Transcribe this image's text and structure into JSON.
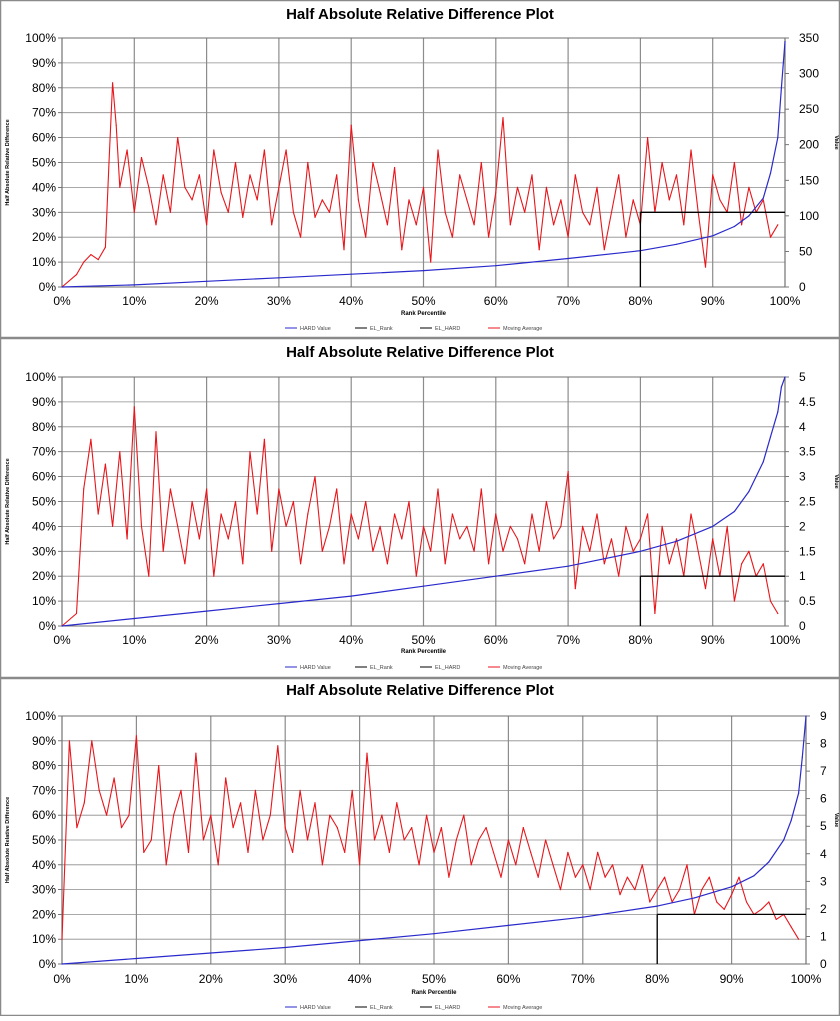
{
  "chart_data": [
    {
      "type": "line",
      "title": "Half Absolute Relative Difference Plot",
      "xlabel": "Rank Percentile",
      "ylabel": "Half Absolute Relative Difference",
      "y2label": "Value",
      "x_ticks": [
        "0%",
        "10%",
        "20%",
        "30%",
        "40%",
        "50%",
        "60%",
        "70%",
        "80%",
        "90%",
        "100%"
      ],
      "y_ticks": [
        "0%",
        "10%",
        "20%",
        "30%",
        "40%",
        "50%",
        "60%",
        "70%",
        "80%",
        "90%",
        "100%"
      ],
      "y2_ticks": [
        "0",
        "50",
        "100",
        "150",
        "200",
        "250",
        "300",
        "350"
      ],
      "xlim": [
        0,
        100
      ],
      "ylim": [
        0,
        100
      ],
      "y2lim": [
        0,
        350
      ],
      "legend": [
        "HARD Value",
        "EL_Rank",
        "EL_HARD",
        "Moving Average"
      ],
      "legend_position": "bottom",
      "el_rank": 80,
      "el_hard": 30,
      "series": [
        {
          "name": "Moving Average",
          "color": "#e8161b",
          "x": [
            0,
            2,
            3,
            4,
            5,
            6,
            6.5,
            7,
            7.5,
            8,
            9,
            10,
            11,
            12,
            13,
            14,
            15,
            16,
            17,
            18,
            19,
            20,
            21,
            22,
            23,
            24,
            25,
            26,
            27,
            28,
            29,
            30,
            31,
            32,
            33,
            34,
            35,
            36,
            37,
            38,
            39,
            40,
            41,
            42,
            43,
            44,
            45,
            46,
            47,
            48,
            49,
            50,
            51,
            52,
            53,
            54,
            55,
            56,
            57,
            58,
            59,
            60,
            61,
            62,
            63,
            64,
            65,
            66,
            67,
            68,
            69,
            70,
            71,
            72,
            73,
            74,
            75,
            76,
            77,
            78,
            79,
            80,
            81,
            82,
            83,
            84,
            85,
            86,
            87,
            88,
            89,
            90,
            91,
            92,
            93,
            94,
            95,
            96,
            97,
            98,
            99
          ],
          "y": [
            0,
            5,
            10,
            13,
            11,
            16,
            50,
            82,
            65,
            40,
            55,
            30,
            52,
            40,
            25,
            45,
            30,
            60,
            40,
            35,
            45,
            25,
            55,
            38,
            30,
            50,
            28,
            45,
            35,
            55,
            25,
            40,
            55,
            30,
            20,
            50,
            28,
            35,
            30,
            45,
            15,
            65,
            35,
            20,
            50,
            38,
            25,
            48,
            15,
            35,
            25,
            40,
            10,
            55,
            30,
            20,
            45,
            35,
            25,
            50,
            20,
            38,
            68,
            25,
            40,
            30,
            45,
            15,
            40,
            25,
            35,
            20,
            45,
            30,
            25,
            40,
            15,
            30,
            45,
            20,
            35,
            25,
            60,
            30,
            50,
            35,
            45,
            25,
            55,
            30,
            8,
            45,
            35,
            30,
            50,
            25,
            40,
            30,
            35,
            20,
            25
          ]
        },
        {
          "name": "HARD Value",
          "color": "#2a2acc",
          "x": [
            0,
            10,
            20,
            30,
            40,
            50,
            60,
            70,
            80,
            85,
            90,
            93,
            95,
            97,
            98,
            99,
            99.5,
            100
          ],
          "y": [
            0,
            3,
            8,
            13,
            18,
            23,
            30,
            40,
            51,
            60,
            72,
            85,
            100,
            125,
            160,
            210,
            280,
            345
          ]
        }
      ]
    },
    {
      "type": "line",
      "title": "Half Absolute Relative Difference Plot",
      "xlabel": "Rank Percentile",
      "ylabel": "Half Absolute Relative Difference",
      "y2label": "Value",
      "x_ticks": [
        "0%",
        "10%",
        "20%",
        "30%",
        "40%",
        "50%",
        "60%",
        "70%",
        "80%",
        "90%",
        "100%"
      ],
      "y_ticks": [
        "0%",
        "10%",
        "20%",
        "30%",
        "40%",
        "50%",
        "60%",
        "70%",
        "80%",
        "90%",
        "100%"
      ],
      "y2_ticks": [
        "0",
        "0.5",
        "1",
        "1.5",
        "2",
        "2.5",
        "3",
        "3.5",
        "4",
        "4.5",
        "5"
      ],
      "xlim": [
        0,
        100
      ],
      "ylim": [
        0,
        100
      ],
      "y2lim": [
        0,
        5
      ],
      "legend": [
        "HARD Value",
        "EL_Rank",
        "EL_HARD",
        "Moving Average"
      ],
      "legend_position": "bottom",
      "el_rank": 80,
      "el_hard": 20,
      "series": [
        {
          "name": "Moving Average",
          "color": "#e8161b",
          "x": [
            0,
            2,
            3,
            4,
            5,
            6,
            7,
            8,
            9,
            10,
            11,
            12,
            13,
            14,
            15,
            16,
            17,
            18,
            19,
            20,
            21,
            22,
            23,
            24,
            25,
            26,
            27,
            28,
            29,
            30,
            31,
            32,
            33,
            34,
            35,
            36,
            37,
            38,
            39,
            40,
            41,
            42,
            43,
            44,
            45,
            46,
            47,
            48,
            49,
            50,
            51,
            52,
            53,
            54,
            55,
            56,
            57,
            58,
            59,
            60,
            61,
            62,
            63,
            64,
            65,
            66,
            67,
            68,
            69,
            70,
            71,
            72,
            73,
            74,
            75,
            76,
            77,
            78,
            79,
            80,
            81,
            82,
            83,
            84,
            85,
            86,
            87,
            88,
            89,
            90,
            91,
            92,
            93,
            94,
            95,
            96,
            97,
            98,
            99
          ],
          "y": [
            0,
            5,
            55,
            75,
            45,
            65,
            40,
            70,
            35,
            88,
            40,
            20,
            78,
            30,
            55,
            40,
            25,
            50,
            35,
            55,
            20,
            45,
            35,
            50,
            25,
            70,
            45,
            75,
            30,
            55,
            40,
            50,
            25,
            45,
            60,
            30,
            40,
            55,
            25,
            45,
            35,
            50,
            30,
            40,
            25,
            45,
            35,
            50,
            20,
            40,
            30,
            55,
            25,
            45,
            35,
            40,
            30,
            55,
            25,
            45,
            30,
            40,
            35,
            25,
            45,
            30,
            50,
            35,
            40,
            62,
            15,
            40,
            30,
            45,
            25,
            35,
            20,
            40,
            30,
            35,
            45,
            5,
            40,
            25,
            35,
            20,
            45,
            30,
            15,
            35,
            20,
            40,
            10,
            25,
            30,
            20,
            25,
            10,
            5
          ]
        },
        {
          "name": "HARD Value",
          "color": "#2a2acc",
          "x": [
            0,
            10,
            20,
            30,
            40,
            50,
            60,
            70,
            80,
            85,
            90,
            93,
            95,
            97,
            98,
            99,
            99.5,
            100
          ],
          "y": [
            0,
            0.15,
            0.3,
            0.45,
            0.6,
            0.8,
            1.0,
            1.2,
            1.5,
            1.7,
            2.0,
            2.3,
            2.7,
            3.3,
            3.8,
            4.3,
            4.8,
            5.0
          ]
        }
      ]
    },
    {
      "type": "line",
      "title": "Half Absolute Relative Difference Plot",
      "xlabel": "Rank Percentile",
      "ylabel": "Half Absolute Relative Difference",
      "y2label": "Value",
      "x_ticks": [
        "0%",
        "10%",
        "20%",
        "30%",
        "40%",
        "50%",
        "60%",
        "70%",
        "80%",
        "90%",
        "100%"
      ],
      "y_ticks": [
        "0%",
        "10%",
        "20%",
        "30%",
        "40%",
        "50%",
        "60%",
        "70%",
        "80%",
        "90%",
        "100%"
      ],
      "y2_ticks": [
        "0",
        "1",
        "2",
        "3",
        "4",
        "5",
        "6",
        "7",
        "8",
        "9"
      ],
      "xlim": [
        0,
        100
      ],
      "ylim": [
        0,
        100
      ],
      "y2lim": [
        0,
        9
      ],
      "legend": [
        "HARD Value",
        "EL_Rank",
        "EL_HARD",
        "Moving Average"
      ],
      "legend_position": "bottom",
      "el_rank": 80,
      "el_hard": 20,
      "series": [
        {
          "name": "Moving Average",
          "color": "#e8161b",
          "x": [
            0,
            1,
            2,
            3,
            4,
            5,
            6,
            7,
            8,
            9,
            10,
            11,
            12,
            13,
            14,
            15,
            16,
            17,
            18,
            19,
            20,
            21,
            22,
            23,
            24,
            25,
            26,
            27,
            28,
            29,
            30,
            31,
            32,
            33,
            34,
            35,
            36,
            37,
            38,
            39,
            40,
            41,
            42,
            43,
            44,
            45,
            46,
            47,
            48,
            49,
            50,
            51,
            52,
            53,
            54,
            55,
            56,
            57,
            58,
            59,
            60,
            61,
            62,
            63,
            64,
            65,
            66,
            67,
            68,
            69,
            70,
            71,
            72,
            73,
            74,
            75,
            76,
            77,
            78,
            79,
            80,
            81,
            82,
            83,
            84,
            85,
            86,
            87,
            88,
            89,
            90,
            91,
            92,
            93,
            94,
            95,
            96,
            97,
            98,
            99
          ],
          "y": [
            10,
            90,
            55,
            65,
            90,
            70,
            60,
            75,
            55,
            60,
            92,
            45,
            50,
            80,
            40,
            60,
            70,
            45,
            85,
            50,
            60,
            40,
            75,
            55,
            65,
            45,
            70,
            50,
            60,
            88,
            55,
            45,
            70,
            50,
            65,
            40,
            60,
            55,
            45,
            70,
            40,
            85,
            50,
            60,
            45,
            65,
            50,
            55,
            40,
            60,
            45,
            55,
            35,
            50,
            60,
            40,
            50,
            55,
            45,
            35,
            50,
            40,
            55,
            45,
            35,
            50,
            40,
            30,
            45,
            35,
            40,
            30,
            45,
            35,
            40,
            28,
            35,
            30,
            40,
            25,
            30,
            35,
            25,
            30,
            40,
            20,
            30,
            35,
            25,
            22,
            28,
            35,
            25,
            20,
            22,
            25,
            18,
            20,
            15,
            10
          ]
        },
        {
          "name": "HARD Value",
          "color": "#2a2acc",
          "x": [
            0,
            10,
            20,
            30,
            40,
            50,
            60,
            70,
            80,
            85,
            90,
            93,
            95,
            97,
            98,
            99,
            99.5,
            100
          ],
          "y": [
            0,
            0.2,
            0.4,
            0.6,
            0.85,
            1.1,
            1.4,
            1.7,
            2.1,
            2.4,
            2.8,
            3.2,
            3.7,
            4.5,
            5.2,
            6.2,
            7.5,
            9.0
          ]
        }
      ]
    }
  ]
}
